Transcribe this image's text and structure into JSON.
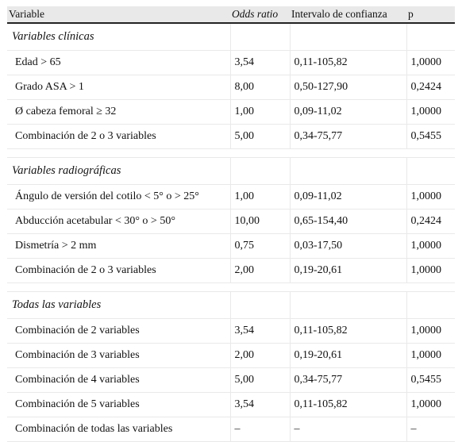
{
  "columns": [
    "Variable",
    "Odds ratio",
    "Intervalo de confianza",
    "p"
  ],
  "sections": [
    {
      "title": "Variables clínicas",
      "rows": [
        {
          "variable": "Edad > 65",
          "odds": "3,54",
          "ci": "0,11-105,82",
          "p": "1,0000"
        },
        {
          "variable": "Grado ASA > 1",
          "odds": "8,00",
          "ci": "0,50-127,90",
          "p": "0,2424"
        },
        {
          "variable": "Ø cabeza femoral ≥ 32",
          "odds": "1,00",
          "ci": "0,09-11,02",
          "p": "1,0000"
        },
        {
          "variable": "Combinación de 2 o 3 variables",
          "odds": "5,00",
          "ci": "0,34-75,77",
          "p": "0,5455"
        }
      ]
    },
    {
      "title": "Variables radiográficas",
      "rows": [
        {
          "variable": "Ángulo de versión del cotilo < 5° o > 25°",
          "odds": "1,00",
          "ci": "0,09-11,02",
          "p": "1,0000"
        },
        {
          "variable": "Abducción acetabular < 30° o > 50°",
          "odds": "10,00",
          "ci": "0,65-154,40",
          "p": "0,2424"
        },
        {
          "variable": "Dismetría > 2 mm",
          "odds": "0,75",
          "ci": "0,03-17,50",
          "p": "1,0000"
        },
        {
          "variable": "Combinación de 2 o 3 variables",
          "odds": "2,00",
          "ci": "0,19-20,61",
          "p": "1,0000"
        }
      ]
    },
    {
      "title": "Todas las variables",
      "rows": [
        {
          "variable": "Combinación de 2 variables",
          "odds": "3,54",
          "ci": "0,11-105,82",
          "p": "1,0000"
        },
        {
          "variable": "Combinación de 3 variables",
          "odds": "2,00",
          "ci": "0,19-20,61",
          "p": "1,0000"
        },
        {
          "variable": "Combinación de 4 variables",
          "odds": "5,00",
          "ci": "0,34-75,77",
          "p": "0,5455"
        },
        {
          "variable": "Combinación de 5 variables",
          "odds": "3,54",
          "ci": "0,11-105,82",
          "p": "1,0000"
        },
        {
          "variable": "Combinación de todas las variables",
          "odds": "–",
          "ci": "–",
          "p": "–"
        }
      ]
    }
  ]
}
